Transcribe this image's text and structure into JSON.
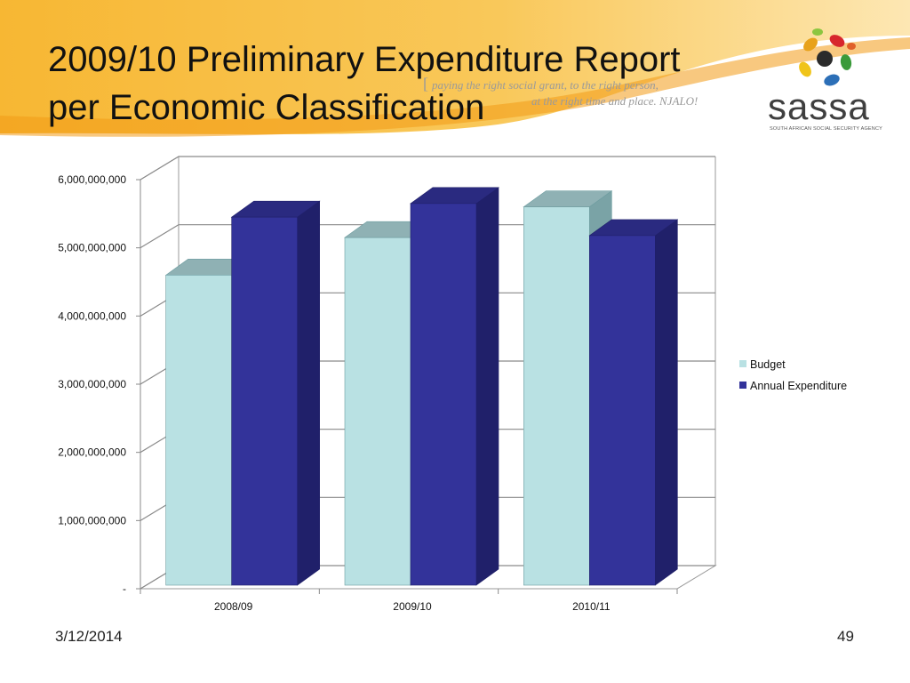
{
  "slide": {
    "title_line1": "2009/10 Preliminary Expenditure Report",
    "title_line2": "per Economic Classification",
    "tagline_bracket": "[",
    "tagline_line1": "paying the right social grant, to the right person,",
    "tagline_line2": "at the right time and place. NJALO!",
    "logo_text": "sassa",
    "logo_subtext": "SOUTH AFRICAN SOCIAL SECURITY AGENCY",
    "footer_date": "3/12/2014",
    "page_number": "49"
  },
  "colors": {
    "banner_orange": "#f5a623",
    "banner_light": "#fbd27a",
    "budget": "#b9e1e3",
    "expenditure": "#33339a"
  },
  "chart_data": {
    "type": "bar",
    "title": "",
    "xlabel": "",
    "ylabel": "",
    "categories": [
      "2008/09",
      "2009/10",
      "2010/11"
    ],
    "series": [
      {
        "name": "Budget",
        "values": [
          4600000000,
          5150000000,
          5600000000
        ]
      },
      {
        "name": "Annual Expenditure",
        "values": [
          5450000000,
          5650000000,
          5180000000
        ]
      }
    ],
    "ylim": [
      0,
      6000000000
    ],
    "yticks": [
      {
        "value": 0,
        "label": "-"
      },
      {
        "value": 1000000000,
        "label": "1,000,000,000"
      },
      {
        "value": 2000000000,
        "label": "2,000,000,000"
      },
      {
        "value": 3000000000,
        "label": "3,000,000,000"
      },
      {
        "value": 4000000000,
        "label": "4,000,000,000"
      },
      {
        "value": 5000000000,
        "label": "5,000,000,000"
      },
      {
        "value": 6000000000,
        "label": "6,000,000,000"
      }
    ],
    "grid": true,
    "three_d": true,
    "legend_position": "right"
  }
}
